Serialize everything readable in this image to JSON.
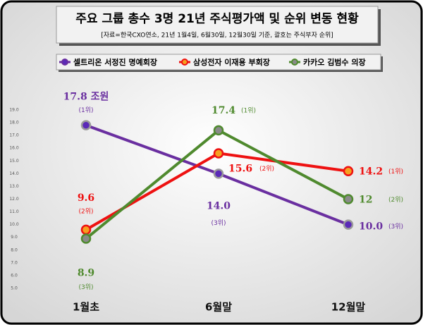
{
  "chart_data": {
    "type": "line",
    "title": "주요 그룹 총수 3명 21년 주식평가액 및 순위 변동 현황",
    "subtitle": "[자료=한국CXO연소, 21년 1월4일, 6월30일, 12월30일 기준, 괄호는 주식부자 순위]",
    "categories": [
      "1월초",
      "6월말",
      "12월말"
    ],
    "series": [
      {
        "name": "셀트리온 서정진 명예회장",
        "color": "#6a2fa0",
        "marker_color": "#5b2ab8",
        "values": [
          17.8,
          14.0,
          10.0
        ],
        "value_labels": [
          "17.8 조원",
          "14.0",
          "10.0"
        ],
        "rank_labels": [
          "(1위)",
          "(3위)",
          "(3위)"
        ]
      },
      {
        "name": "삼성전자 이재용 부회장",
        "color": "#ee1111",
        "marker_color": "#f5a020",
        "values": [
          9.6,
          15.6,
          14.2
        ],
        "rank_labels": [
          "(2위)",
          "(2위)",
          "(1위)"
        ]
      },
      {
        "name": "카카오 김범수 의장",
        "color": "#4f8a2e",
        "marker_color": "#8a8a8a",
        "values": [
          8.9,
          17.4,
          12.0
        ],
        "rank_labels": [
          "(3위)",
          "(1위)",
          "(2위)"
        ]
      }
    ],
    "ylim": [
      5,
      19
    ],
    "yticks": [
      {
        "value": 5,
        "label": "5.0"
      },
      {
        "value": 6,
        "label": "6.0"
      },
      {
        "value": 7,
        "label": "7.0"
      },
      {
        "value": 8,
        "label": "8.0"
      },
      {
        "value": 9,
        "label": "9.0"
      },
      {
        "value": 10,
        "label": "10.0"
      },
      {
        "value": 11,
        "label": "11.0"
      },
      {
        "value": 12,
        "label": "12.0"
      },
      {
        "value": 13,
        "label": "13.0"
      },
      {
        "value": 14,
        "label": "14.0"
      },
      {
        "value": 15,
        "label": "15.0"
      },
      {
        "value": 16,
        "label": "16.0"
      },
      {
        "value": 17,
        "label": "17.0"
      },
      {
        "value": 18,
        "label": "18.0"
      },
      {
        "value": 19,
        "label": "19.0"
      }
    ],
    "grid": false
  }
}
